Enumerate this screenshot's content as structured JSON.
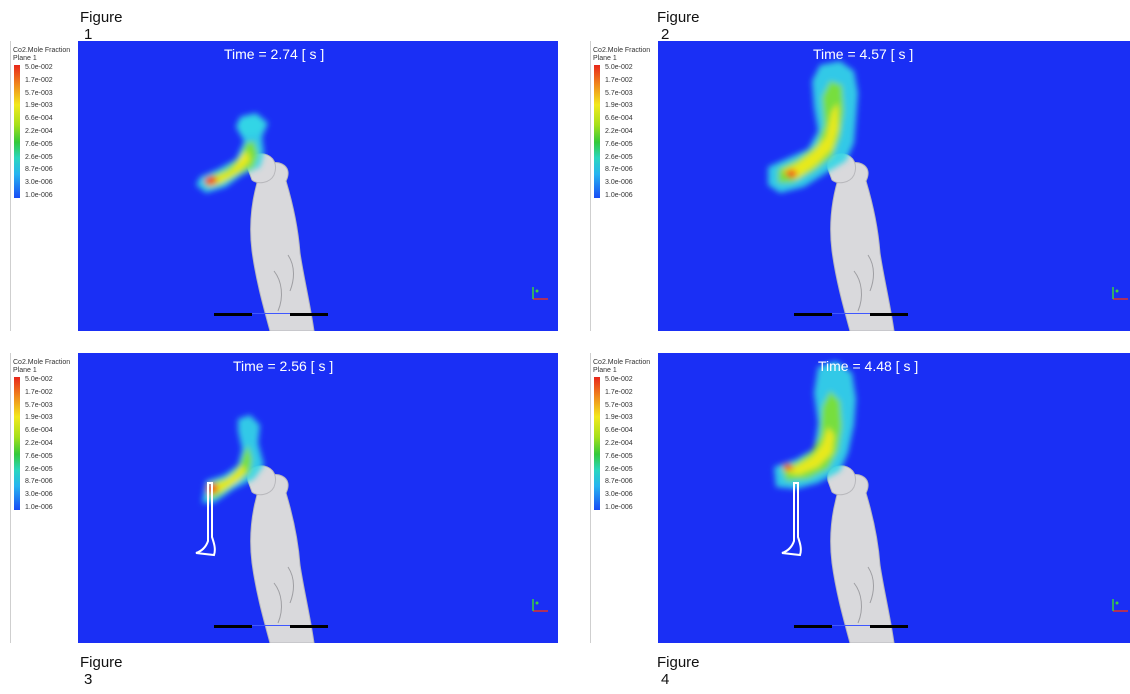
{
  "legend": {
    "variable": "Co2.Mole Fraction",
    "location": "Plane 1",
    "values": [
      "5.0e-002",
      "1.7e-002",
      "5.7e-003",
      "1.9e-003",
      "6.6e-004",
      "2.2e-004",
      "7.6e-005",
      "2.6e-005",
      "8.7e-006",
      "3.0e-006",
      "1.0e-006"
    ]
  },
  "figures": [
    {
      "caption": "Figure",
      "number": "1",
      "time": "Time = 2.74 [ s ]"
    },
    {
      "caption": "Figure",
      "number": "2",
      "time": "Time = 4.57 [ s ]"
    },
    {
      "caption": "Figure",
      "number": "3",
      "time": "Time = 2.56 [ s ]"
    },
    {
      "caption": "Figure",
      "number": "4",
      "time": "Time = 4.48 [ s ]"
    }
  ],
  "colors": {
    "background": "#1a2ff5",
    "body": "#d9d9dc",
    "plume_low": "#33d6e6",
    "plume_mid": "#7ee030",
    "plume_high": "#f2e91a",
    "plume_peak": "#f0401a"
  }
}
